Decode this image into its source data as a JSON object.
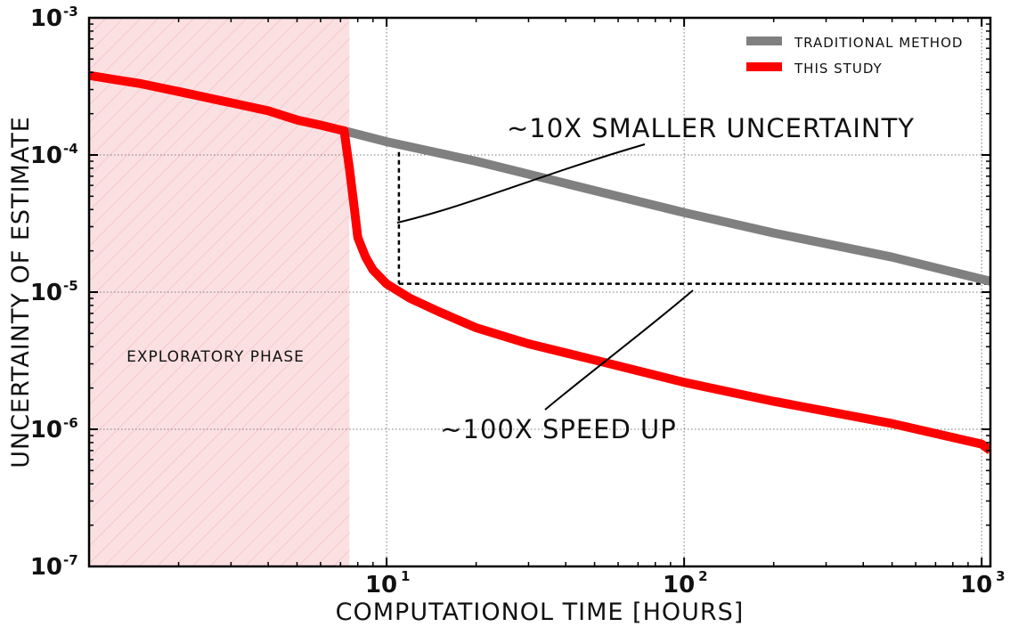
{
  "chart_data": {
    "type": "line",
    "xlabel": "COMPUTATIONOL TIME [HOURS]",
    "ylabel": "UNCERTAINTY OF ESTIMATE",
    "x_scale": "log",
    "y_scale": "log",
    "xlim": [
      1,
      1070
    ],
    "ylim": [
      1e-07,
      0.001
    ],
    "x_ticks": [
      {
        "value": 10,
        "base": "10",
        "exp": "1"
      },
      {
        "value": 100,
        "base": "10",
        "exp": "2"
      },
      {
        "value": 1000,
        "base": "10",
        "exp": "3"
      }
    ],
    "y_ticks": [
      {
        "value": 0.001,
        "base": "10",
        "exp": "-3"
      },
      {
        "value": 0.0001,
        "base": "10",
        "exp": "-4"
      },
      {
        "value": 1e-05,
        "base": "10",
        "exp": "-5"
      },
      {
        "value": 1e-06,
        "base": "10",
        "exp": "-6"
      },
      {
        "value": 1e-07,
        "base": "10",
        "exp": "-7"
      }
    ],
    "grid": true,
    "legend_position": "top-right",
    "shaded_region": {
      "x_start": 1,
      "x_end": 7.5,
      "label": "EXPLORATORY PHASE",
      "color": "#fbe0e2"
    },
    "series": [
      {
        "name": "TRADITIONAL METHOD",
        "color": "#808080",
        "x": [
          7.2,
          10,
          20,
          50,
          100,
          200,
          500,
          1070
        ],
        "y": [
          0.00015,
          0.000125,
          9e-05,
          5.5e-05,
          3.8e-05,
          2.7e-05,
          1.8e-05,
          1.2e-05
        ]
      },
      {
        "name": "THIS STUDY",
        "color": "#ff0000",
        "x": [
          1,
          1.5,
          2,
          3,
          4,
          5,
          6,
          7.2,
          7.5,
          7.8,
          8,
          8.5,
          9,
          10,
          12,
          15,
          20,
          30,
          50,
          100,
          200,
          500,
          1000,
          1070
        ],
        "y": [
          0.00038,
          0.00033,
          0.00029,
          0.00024,
          0.00021,
          0.00018,
          0.000165,
          0.00015,
          8e-05,
          4e-05,
          2.5e-05,
          1.8e-05,
          1.45e-05,
          1.15e-05,
          9e-06,
          7.2e-06,
          5.5e-06,
          4.2e-06,
          3.2e-06,
          2.2e-06,
          1.6e-06,
          1.1e-06,
          7.8e-07,
          7e-07
        ]
      }
    ],
    "reference_lines": [
      {
        "type": "vertical",
        "x": 11,
        "y_from": 0.00012,
        "y_to": 1.15e-05
      },
      {
        "type": "horizontal",
        "y": 1.15e-05,
        "x_from": 11,
        "x_to": 1070
      }
    ],
    "annotations": [
      {
        "text": "~10X SMALLER UNCERTAINTY"
      },
      {
        "text": "~100X SPEED UP"
      }
    ]
  }
}
